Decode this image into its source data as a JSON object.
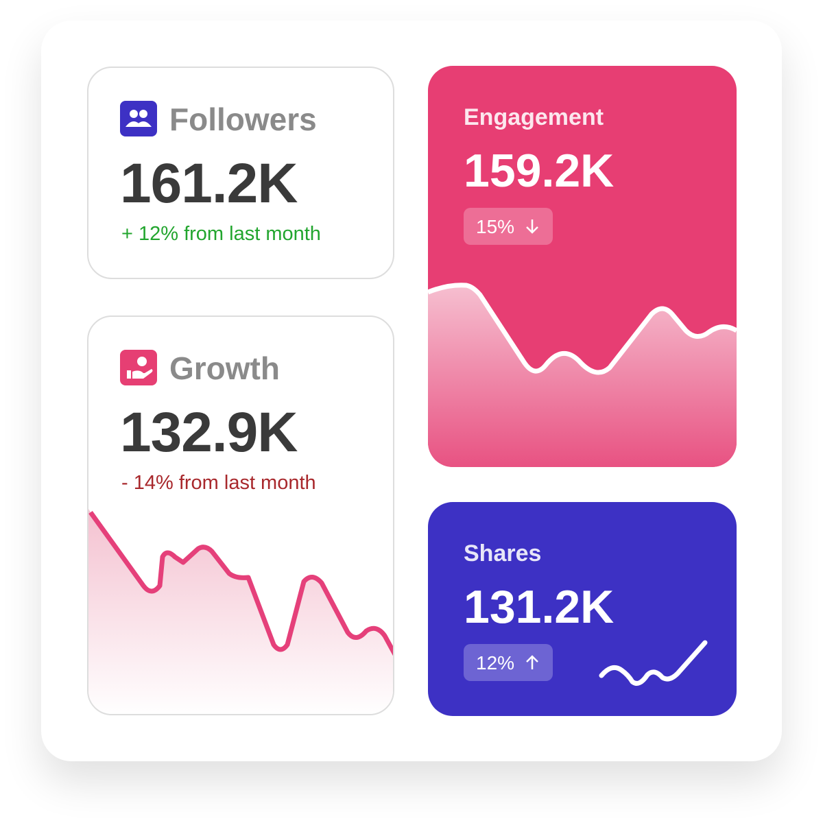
{
  "cards": [
    {
      "title": "Followers",
      "value": "161.2K",
      "change": "+ 12% from last month"
    },
    {
      "title": "Growth",
      "value": "132.9K",
      "change": "- 14% from last month"
    },
    {
      "title": "Engagement",
      "value": "159.2K",
      "change": "15%"
    },
    {
      "title": "Shares",
      "value": "131.2K",
      "change": "12%"
    }
  ]
}
